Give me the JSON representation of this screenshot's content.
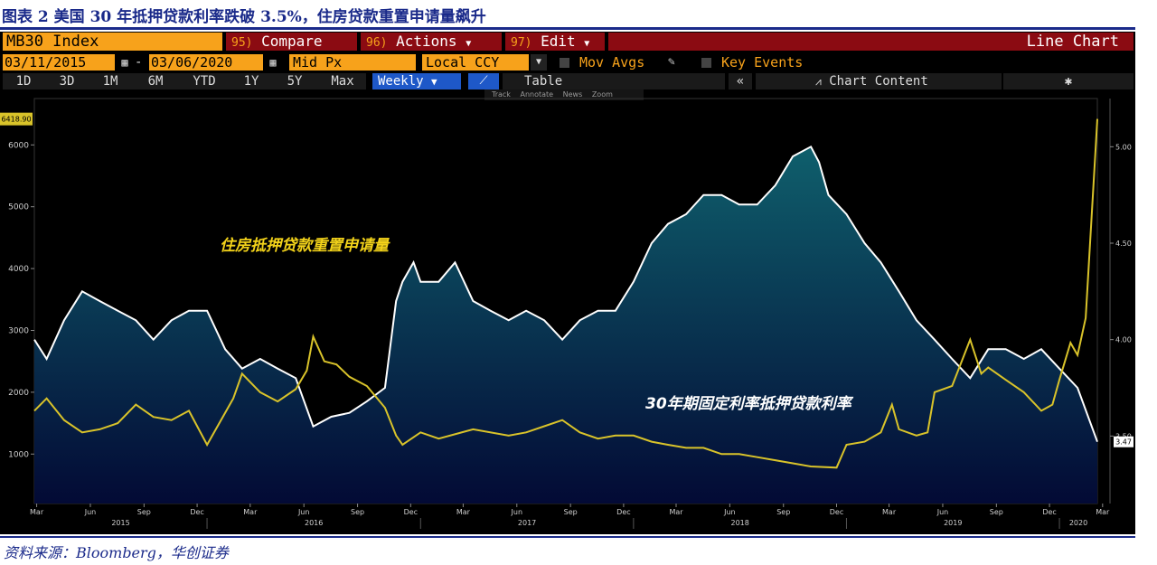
{
  "figure_title": "图表 2  美国 30 年抵押贷款利率跌破 3.5%，住房贷款重置申请量飙升",
  "source": "资料来源：Bloomberg，华创证券",
  "toolbar": {
    "ticker": "MB30 Index",
    "compare_num": "95)",
    "compare": "Compare",
    "actions_num": "96)",
    "actions": "Actions",
    "edit_num": "97)",
    "edit": "Edit",
    "chart_type": "Line Chart",
    "start_date": "03/11/2015",
    "end_date": "03/06/2020",
    "price_type": "Mid Px",
    "currency": "Local CCY",
    "mov_avgs": "Mov Avgs",
    "key_events": "Key Events",
    "ranges": [
      "1D",
      "3D",
      "1M",
      "6M",
      "YTD",
      "1Y",
      "5Y",
      "Max"
    ],
    "frequency": "Weekly",
    "table": "Table",
    "chart_content": "Chart Content",
    "tools": [
      "Track",
      "Annotate",
      "News",
      "Zoom"
    ]
  },
  "colors": {
    "applications": "#ffffff",
    "rate": "#d9c32a",
    "area_top": "#0f5f6c",
    "area_bottom": "#030a35",
    "orange": "#f7a21b",
    "red_bar": "#8b0b12"
  },
  "chart_data": {
    "type": "area",
    "x_range": [
      "2015-03-11",
      "2020-03-06"
    ],
    "x_month_labels": [
      "Mar",
      "Jun",
      "Sep",
      "Dec",
      "Mar",
      "Jun",
      "Sep",
      "Dec",
      "Mar",
      "Jun",
      "Sep",
      "Dec",
      "Mar",
      "Jun",
      "Sep",
      "Dec",
      "Mar",
      "Jun",
      "Sep",
      "Dec",
      "Mar"
    ],
    "x_year_labels": [
      "2015",
      "2016",
      "2017",
      "2018",
      "2019",
      "2020"
    ],
    "left_axis": {
      "ticks": [
        1000,
        2000,
        3000,
        4000,
        5000,
        6000
      ],
      "ylim": [
        200,
        6750
      ],
      "last_value_label": "6418.90"
    },
    "right_axis": {
      "ticks": [
        "3.50",
        "4.00",
        "4.50",
        "5.00"
      ],
      "ylim": [
        3.15,
        5.25
      ],
      "last_value_label": "3.47"
    },
    "series": [
      {
        "name": "住房抵押贷款重置申请量",
        "axis": "left",
        "style": "yellow line",
        "points": [
          [
            "2015-03-11",
            1700
          ],
          [
            "2015-04-01",
            1900
          ],
          [
            "2015-05-01",
            1550
          ],
          [
            "2015-06-01",
            1350
          ],
          [
            "2015-07-01",
            1400
          ],
          [
            "2015-08-01",
            1500
          ],
          [
            "2015-09-01",
            1800
          ],
          [
            "2015-10-01",
            1600
          ],
          [
            "2015-11-01",
            1550
          ],
          [
            "2015-12-01",
            1700
          ],
          [
            "2016-01-01",
            1150
          ],
          [
            "2016-02-15",
            1900
          ],
          [
            "2016-03-01",
            2300
          ],
          [
            "2016-04-01",
            2000
          ],
          [
            "2016-05-01",
            1850
          ],
          [
            "2016-06-01",
            2050
          ],
          [
            "2016-06-20",
            2350
          ],
          [
            "2016-07-01",
            2900
          ],
          [
            "2016-07-20",
            2500
          ],
          [
            "2016-08-10",
            2450
          ],
          [
            "2016-09-01",
            2250
          ],
          [
            "2016-10-01",
            2100
          ],
          [
            "2016-11-01",
            1750
          ],
          [
            "2016-11-20",
            1300
          ],
          [
            "2016-12-01",
            1150
          ],
          [
            "2017-01-01",
            1350
          ],
          [
            "2017-02-01",
            1250
          ],
          [
            "2017-04-01",
            1400
          ],
          [
            "2017-06-01",
            1300
          ],
          [
            "2017-07-01",
            1350
          ],
          [
            "2017-08-01",
            1450
          ],
          [
            "2017-09-01",
            1550
          ],
          [
            "2017-10-01",
            1350
          ],
          [
            "2017-11-01",
            1250
          ],
          [
            "2017-12-01",
            1300
          ],
          [
            "2018-01-01",
            1300
          ],
          [
            "2018-02-01",
            1200
          ],
          [
            "2018-03-01",
            1150
          ],
          [
            "2018-04-01",
            1100
          ],
          [
            "2018-05-01",
            1100
          ],
          [
            "2018-06-01",
            1000
          ],
          [
            "2018-07-01",
            1000
          ],
          [
            "2018-08-01",
            950
          ],
          [
            "2018-09-01",
            900
          ],
          [
            "2018-10-01",
            850
          ],
          [
            "2018-11-01",
            800
          ],
          [
            "2018-12-15",
            780
          ],
          [
            "2019-01-01",
            1150
          ],
          [
            "2019-02-01",
            1200
          ],
          [
            "2019-03-01",
            1350
          ],
          [
            "2019-03-20",
            1800
          ],
          [
            "2019-04-01",
            1400
          ],
          [
            "2019-05-01",
            1300
          ],
          [
            "2019-05-20",
            1350
          ],
          [
            "2019-06-01",
            2000
          ],
          [
            "2019-07-01",
            2100
          ],
          [
            "2019-08-01",
            2850
          ],
          [
            "2019-08-20",
            2300
          ],
          [
            "2019-09-01",
            2400
          ],
          [
            "2019-10-01",
            2200
          ],
          [
            "2019-11-01",
            2000
          ],
          [
            "2019-12-01",
            1700
          ],
          [
            "2019-12-20",
            1800
          ],
          [
            "2020-01-01",
            2200
          ],
          [
            "2020-01-20",
            2800
          ],
          [
            "2020-02-01",
            2600
          ],
          [
            "2020-02-15",
            3200
          ],
          [
            "2020-03-06",
            6418.9
          ]
        ]
      },
      {
        "name": "30年期固定利率抵押贷款利率",
        "axis": "right",
        "style": "white line with gradient area",
        "points": [
          [
            "2015-03-11",
            4.0
          ],
          [
            "2015-04-01",
            3.9
          ],
          [
            "2015-05-01",
            4.1
          ],
          [
            "2015-06-01",
            4.25
          ],
          [
            "2015-07-01",
            4.2
          ],
          [
            "2015-08-01",
            4.15
          ],
          [
            "2015-09-01",
            4.1
          ],
          [
            "2015-10-01",
            4.0
          ],
          [
            "2015-11-01",
            4.1
          ],
          [
            "2015-12-01",
            4.15
          ],
          [
            "2016-01-01",
            4.15
          ],
          [
            "2016-02-01",
            3.95
          ],
          [
            "2016-03-01",
            3.85
          ],
          [
            "2016-04-01",
            3.9
          ],
          [
            "2016-05-01",
            3.85
          ],
          [
            "2016-06-01",
            3.8
          ],
          [
            "2016-07-01",
            3.55
          ],
          [
            "2016-08-01",
            3.6
          ],
          [
            "2016-09-01",
            3.62
          ],
          [
            "2016-10-01",
            3.68
          ],
          [
            "2016-11-01",
            3.75
          ],
          [
            "2016-11-20",
            4.2
          ],
          [
            "2016-12-01",
            4.3
          ],
          [
            "2016-12-20",
            4.4
          ],
          [
            "2017-01-01",
            4.3
          ],
          [
            "2017-02-01",
            4.3
          ],
          [
            "2017-03-01",
            4.4
          ],
          [
            "2017-04-01",
            4.2
          ],
          [
            "2017-05-01",
            4.15
          ],
          [
            "2017-06-01",
            4.1
          ],
          [
            "2017-07-01",
            4.15
          ],
          [
            "2017-08-01",
            4.1
          ],
          [
            "2017-09-01",
            4.0
          ],
          [
            "2017-10-01",
            4.1
          ],
          [
            "2017-11-01",
            4.15
          ],
          [
            "2017-12-01",
            4.15
          ],
          [
            "2018-01-01",
            4.3
          ],
          [
            "2018-02-01",
            4.5
          ],
          [
            "2018-03-01",
            4.6
          ],
          [
            "2018-04-01",
            4.65
          ],
          [
            "2018-05-01",
            4.75
          ],
          [
            "2018-06-01",
            4.75
          ],
          [
            "2018-07-01",
            4.7
          ],
          [
            "2018-08-01",
            4.7
          ],
          [
            "2018-09-01",
            4.8
          ],
          [
            "2018-10-01",
            4.95
          ],
          [
            "2018-11-01",
            5.0
          ],
          [
            "2018-11-15",
            4.92
          ],
          [
            "2018-12-01",
            4.75
          ],
          [
            "2019-01-01",
            4.65
          ],
          [
            "2019-02-01",
            4.5
          ],
          [
            "2019-03-01",
            4.4
          ],
          [
            "2019-04-01",
            4.25
          ],
          [
            "2019-05-01",
            4.1
          ],
          [
            "2019-06-01",
            4.0
          ],
          [
            "2019-07-01",
            3.9
          ],
          [
            "2019-08-01",
            3.8
          ],
          [
            "2019-09-01",
            3.95
          ],
          [
            "2019-10-01",
            3.95
          ],
          [
            "2019-11-01",
            3.9
          ],
          [
            "2019-12-01",
            3.95
          ],
          [
            "2020-01-01",
            3.85
          ],
          [
            "2020-02-01",
            3.75
          ],
          [
            "2020-03-06",
            3.47
          ]
        ]
      }
    ]
  }
}
